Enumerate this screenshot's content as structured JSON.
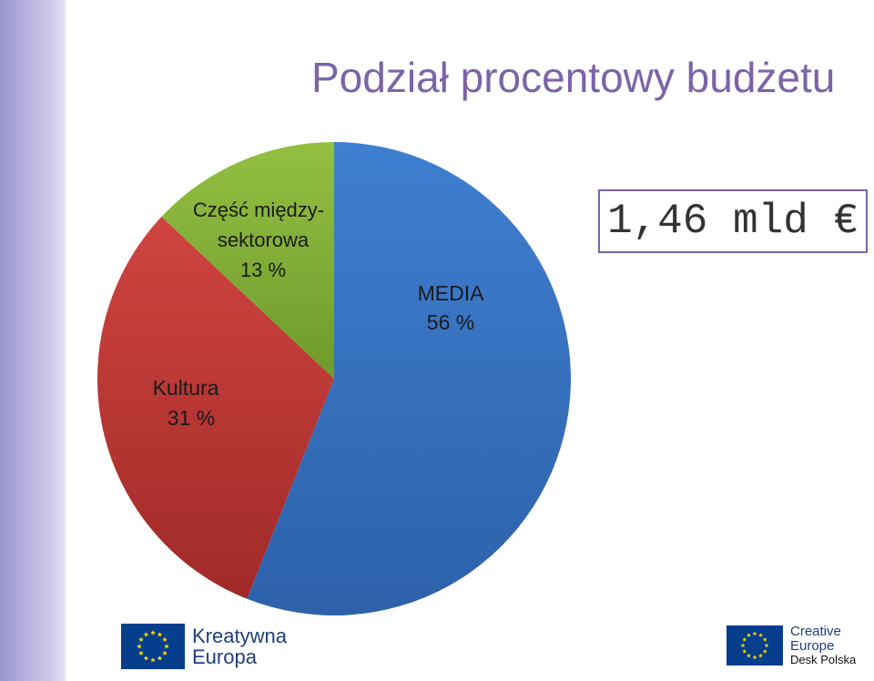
{
  "title": "Podział procentowy budżetu",
  "total": "1,46 mld €",
  "chart_data": {
    "type": "pie",
    "title": "",
    "slices": [
      {
        "name": "MEDIA",
        "value": 56,
        "label_pct": "56 %",
        "color": "#3a78c8"
      },
      {
        "name": "Kultura",
        "value": 31,
        "label_pct": "31 %",
        "color": "#c23a36"
      },
      {
        "name": "Część między-sektorowa",
        "value": 13,
        "label_pct": "13 %",
        "color": "#86b23c"
      }
    ]
  },
  "labels": {
    "media_name": "MEDIA",
    "media_pct": "56 %",
    "kultura_name": "Kultura",
    "kultura_pct": "31 %",
    "cross_line1": "Część między-",
    "cross_line2": "sektorowa",
    "cross_pct": "13 %"
  },
  "logos": {
    "left_line1": "Kreatywna",
    "left_line2": "Europa",
    "right_line1": "Creative",
    "right_line2": "Europe",
    "right_line3": "Desk Polska"
  },
  "icons": {
    "flag": "eu-flag-icon"
  }
}
